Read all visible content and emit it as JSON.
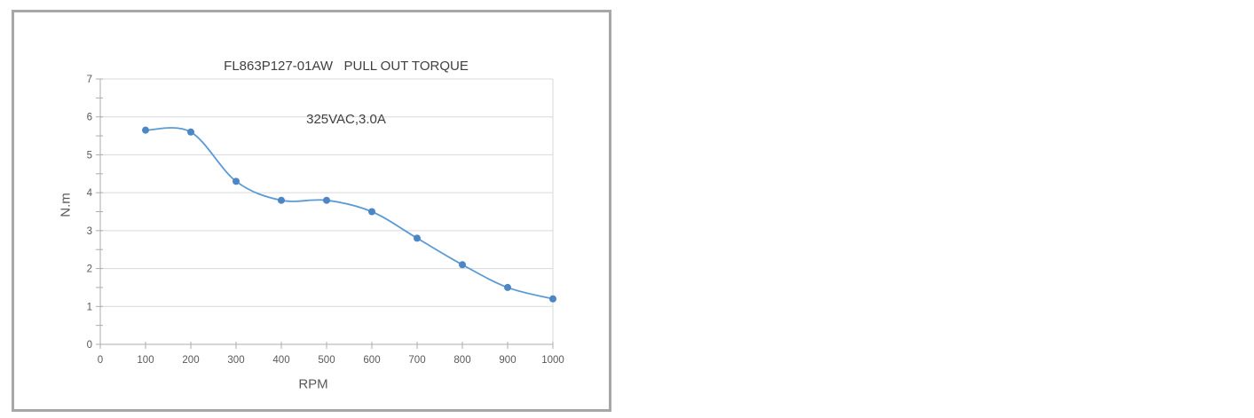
{
  "chart_data": {
    "type": "line",
    "title": "FL863P127-01AW   PULL OUT TORQUE",
    "subtitle": "325VAC,3.0A",
    "xlabel": "RPM",
    "ylabel": "N.m",
    "x": [
      100,
      200,
      300,
      400,
      500,
      600,
      700,
      800,
      900,
      1000
    ],
    "series": [
      {
        "name": "pull-out-torque",
        "values": [
          5.65,
          5.6,
          4.3,
          3.8,
          3.8,
          3.5,
          2.8,
          2.1,
          1.5,
          1.2
        ]
      }
    ],
    "xlim": [
      0,
      1000
    ],
    "ylim": [
      0,
      7
    ],
    "x_ticks": [
      0,
      100,
      200,
      300,
      400,
      500,
      600,
      700,
      800,
      900,
      1000
    ],
    "y_ticks": [
      0,
      1,
      2,
      3,
      4,
      5,
      6,
      7
    ],
    "y_minor_tick_step": 0.5,
    "grid": "horizontal-major-only",
    "legend": "none",
    "smooth": true,
    "marker": "circle"
  },
  "colors": {
    "line": "#5B9BD5",
    "marker": "#4D86C4",
    "gridline": "#D9D9D9",
    "plot_right_border": "#D9D9D9",
    "axis": "#ACACAC",
    "tick_label": "#595959",
    "title_text": "#3F3F3F",
    "axis_title_text": "#595959",
    "frame_border": "#A7A7AA",
    "background": "#FFFFFF"
  }
}
